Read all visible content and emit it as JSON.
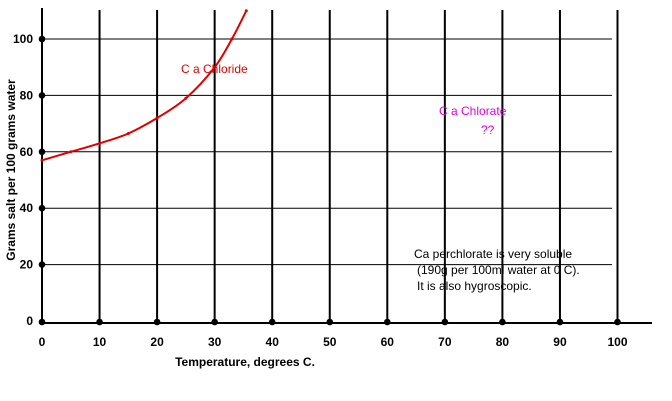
{
  "chart_data": {
    "type": "line",
    "title": "",
    "xlabel": "Temperature, degrees C.",
    "ylabel": "Grams salt per 100 grams water",
    "xlim": [
      0,
      100
    ],
    "ylim": [
      0,
      110
    ],
    "x_ticks": [
      0,
      10,
      20,
      30,
      40,
      50,
      60,
      70,
      80,
      90,
      100
    ],
    "y_ticks": [
      0,
      20,
      40,
      60,
      80,
      100
    ],
    "grid": true,
    "series": [
      {
        "name": "C a Chloride",
        "color": "#e00000",
        "x": [
          0,
          5,
          10,
          15,
          20,
          25,
          30,
          33,
          35.5
        ],
        "y": [
          57,
          60,
          63,
          66.5,
          72,
          79,
          90,
          100,
          110
        ]
      }
    ],
    "annotations": [
      {
        "id": "chlorate",
        "lines": [
          "C a Chlorate",
          "??"
        ],
        "color": "#e000e0"
      },
      {
        "id": "perchlorate",
        "lines": [
          "Ca perchlorate is very soluble",
          "(190g per 100ml water at 0 C).",
          "It is also hygroscopic."
        ],
        "color": "#000000"
      }
    ]
  }
}
